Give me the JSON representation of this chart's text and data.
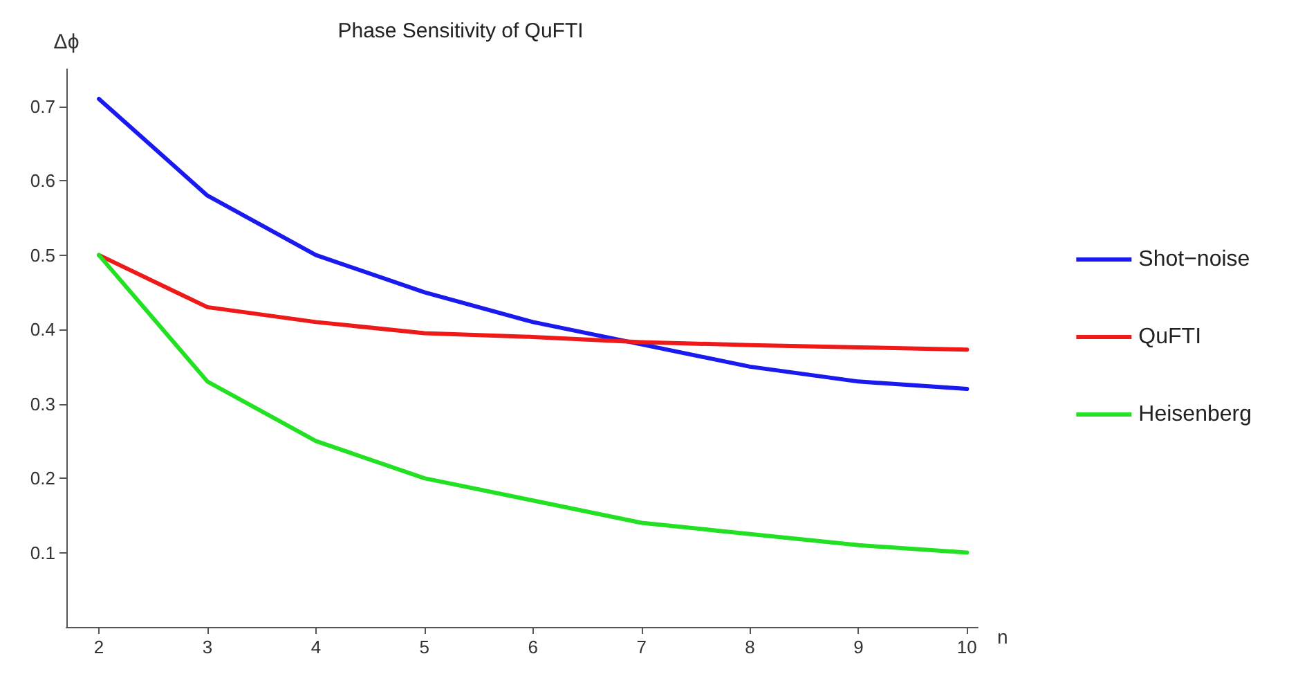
{
  "chart_data": {
    "type": "line",
    "title": "Phase Sensitivity of QuFTI",
    "xlabel": "n",
    "ylabel": "Δϕ",
    "x": [
      2,
      3,
      4,
      5,
      6,
      7,
      8,
      9,
      10
    ],
    "series": [
      {
        "name": "Shot−noise",
        "color": "#1a1aee",
        "values": [
          0.71,
          0.58,
          0.5,
          0.45,
          0.41,
          0.38,
          0.35,
          0.33,
          0.32
        ]
      },
      {
        "name": "QuFTI",
        "color": "#ee1a1a",
        "values": [
          0.5,
          0.43,
          0.41,
          0.395,
          0.39,
          0.383,
          0.379,
          0.376,
          0.373
        ]
      },
      {
        "name": "Heisenberg",
        "color": "#22e022",
        "values": [
          0.5,
          0.33,
          0.25,
          0.2,
          0.17,
          0.14,
          0.125,
          0.11,
          0.1
        ]
      }
    ],
    "xlim": [
      1.7,
      10.1
    ],
    "xticks": [
      2,
      3,
      4,
      5,
      6,
      7,
      8,
      9,
      10
    ],
    "ylim": [
      0,
      0.75
    ],
    "yticks": [
      0.1,
      0.2,
      0.3,
      0.4,
      0.5,
      0.6,
      0.7
    ],
    "grid": false,
    "legend": "right",
    "marker": "none",
    "line_style": "solid"
  }
}
